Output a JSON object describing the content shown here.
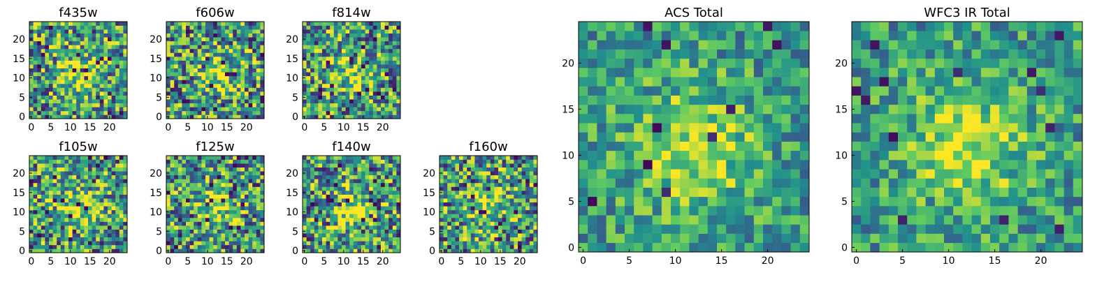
{
  "figure": {
    "background": "#ffffff"
  },
  "chart_data": [
    {
      "type": "heatmap",
      "title": "f435w",
      "xlabel": "",
      "ylabel": "",
      "xlim": [
        0,
        24
      ],
      "ylim": [
        0,
        24
      ],
      "xticks": [
        "0",
        "5",
        "10",
        "15",
        "20"
      ],
      "yticks": [
        "0",
        "5",
        "10",
        "15",
        "20"
      ],
      "grid": false,
      "colormap": "viridis",
      "grid_size": [
        25,
        25
      ],
      "visual_note_values": "25x25 noisy image, bright region near center"
    },
    {
      "type": "heatmap",
      "title": "f606w",
      "xlabel": "",
      "ylabel": "",
      "xlim": [
        0,
        24
      ],
      "ylim": [
        0,
        24
      ],
      "xticks": [
        "0",
        "5",
        "10",
        "15",
        "20"
      ],
      "yticks": [
        "0",
        "5",
        "10",
        "15",
        "20"
      ],
      "grid": false,
      "colormap": "viridis",
      "grid_size": [
        25,
        25
      ]
    },
    {
      "type": "heatmap",
      "title": "f814w",
      "xlabel": "",
      "ylabel": "",
      "xlim": [
        0,
        24
      ],
      "ylim": [
        0,
        24
      ],
      "xticks": [
        "0",
        "5",
        "10",
        "15",
        "20"
      ],
      "yticks": [
        "0",
        "5",
        "10",
        "15",
        "20"
      ],
      "grid": false,
      "colormap": "viridis",
      "grid_size": [
        25,
        25
      ]
    },
    {
      "type": "heatmap",
      "title": "f105w",
      "xlabel": "",
      "ylabel": "",
      "xlim": [
        0,
        24
      ],
      "ylim": [
        0,
        24
      ],
      "xticks": [
        "0",
        "5",
        "10",
        "15",
        "20"
      ],
      "yticks": [
        "0",
        "5",
        "10",
        "15",
        "20"
      ],
      "grid": false,
      "colormap": "viridis",
      "grid_size": [
        25,
        25
      ]
    },
    {
      "type": "heatmap",
      "title": "f125w",
      "xlabel": "",
      "ylabel": "",
      "xlim": [
        0,
        24
      ],
      "ylim": [
        0,
        24
      ],
      "xticks": [
        "0",
        "5",
        "10",
        "15",
        "20"
      ],
      "yticks": [
        "0",
        "5",
        "10",
        "15",
        "20"
      ],
      "grid": false,
      "colormap": "viridis",
      "grid_size": [
        25,
        25
      ]
    },
    {
      "type": "heatmap",
      "title": "f140w",
      "xlabel": "",
      "ylabel": "",
      "xlim": [
        0,
        24
      ],
      "ylim": [
        0,
        24
      ],
      "xticks": [
        "0",
        "5",
        "10",
        "15",
        "20"
      ],
      "yticks": [
        "0",
        "5",
        "10",
        "15",
        "20"
      ],
      "grid": false,
      "colormap": "viridis",
      "grid_size": [
        25,
        25
      ]
    },
    {
      "type": "heatmap",
      "title": "f160w",
      "xlabel": "",
      "ylabel": "",
      "xlim": [
        0,
        24
      ],
      "ylim": [
        0,
        24
      ],
      "xticks": [
        "0",
        "5",
        "10",
        "15",
        "20"
      ],
      "yticks": [
        "0",
        "5",
        "10",
        "15",
        "20"
      ],
      "grid": false,
      "colormap": "viridis",
      "grid_size": [
        25,
        25
      ]
    },
    {
      "type": "heatmap",
      "title": "ACS Total",
      "xlabel": "",
      "ylabel": "",
      "xlim": [
        0,
        24
      ],
      "ylim": [
        0,
        24
      ],
      "xticks": [
        "0",
        "5",
        "10",
        "15",
        "20"
      ],
      "yticks": [
        "0",
        "5",
        "10",
        "15",
        "20"
      ],
      "grid": false,
      "colormap": "viridis",
      "grid_size": [
        25,
        25
      ]
    },
    {
      "type": "heatmap",
      "title": "WFC3 IR Total",
      "xlabel": "",
      "ylabel": "",
      "xlim": [
        0,
        24
      ],
      "ylim": [
        0,
        24
      ],
      "xticks": [
        "0",
        "5",
        "10",
        "15",
        "20"
      ],
      "yticks": [
        "0",
        "5",
        "10",
        "15",
        "20"
      ],
      "grid": false,
      "colormap": "viridis",
      "grid_size": [
        25,
        25
      ]
    }
  ]
}
